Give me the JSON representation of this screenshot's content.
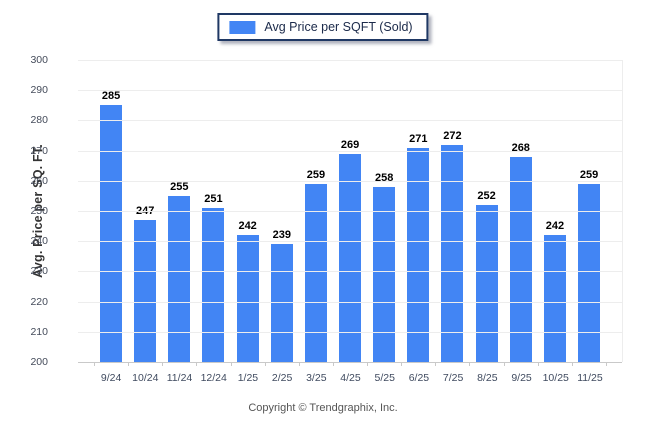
{
  "legend": {
    "label": "Avg Price per SQFT (Sold)",
    "swatch_color": "#4285f4"
  },
  "chart_data": {
    "type": "bar",
    "title": "",
    "series_name": "Avg Price per SQFT (Sold)",
    "categories": [
      "9/24",
      "10/24",
      "11/24",
      "12/24",
      "1/25",
      "2/25",
      "3/25",
      "4/25",
      "5/25",
      "6/25",
      "7/25",
      "8/25",
      "9/25",
      "10/25",
      "11/25"
    ],
    "values": [
      285,
      247,
      255,
      251,
      242,
      239,
      259,
      269,
      258,
      271,
      272,
      252,
      268,
      242,
      259
    ],
    "xlabel": "",
    "ylabel": "Avg. Price per SQ. FT.",
    "ylim": [
      200,
      300
    ],
    "ytick_step": 10,
    "grid": "horizontal",
    "legend_position": "top-center",
    "bar_color": "#4285f4"
  },
  "footer": {
    "copyright": "Copyright © Trendgraphix, Inc."
  },
  "colors": {
    "bar": "#4285f4",
    "gridline": "#ededed",
    "axis_line": "#c9c9c9",
    "legend_border": "#1f3864",
    "value_label": "#000000",
    "tick_label": "#444b5a",
    "footer_text": "#555555"
  }
}
